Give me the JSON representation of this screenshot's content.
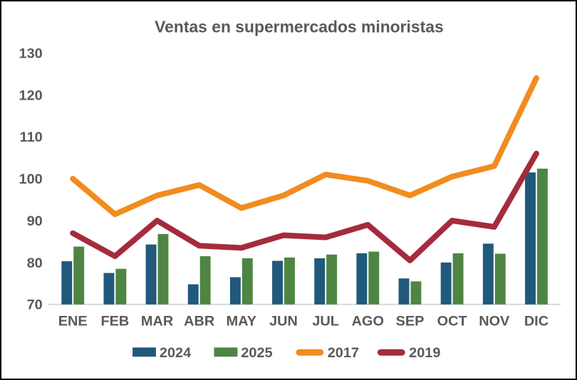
{
  "frame": {
    "background": "#FFFFFF",
    "border_color": "#000000"
  },
  "chart_data": {
    "type": "bar",
    "title": "Ventas en supermercados minoristas",
    "categories": [
      "ENE",
      "FEB",
      "MAR",
      "ABR",
      "MAY",
      "JUN",
      "JUL",
      "AGO",
      "SEP",
      "OCT",
      "NOV",
      "DIC"
    ],
    "series": [
      {
        "name": "2024",
        "render": "bar",
        "color": "#20597C",
        "values": [
          80.3,
          77.5,
          84.3,
          74.8,
          76.5,
          80.4,
          81.0,
          82.2,
          76.2,
          80.0,
          84.5,
          101.5
        ]
      },
      {
        "name": "2025",
        "render": "bar",
        "color": "#4E8542",
        "values": [
          83.8,
          78.5,
          86.8,
          81.5,
          81.0,
          81.2,
          81.9,
          82.6,
          75.5,
          82.2,
          82.1,
          102.4
        ]
      },
      {
        "name": "2017",
        "render": "line",
        "color": "#F18C1F",
        "values": [
          100.0,
          91.5,
          96.0,
          98.5,
          93.0,
          96.0,
          101.0,
          99.5,
          96.0,
          100.5,
          103.0,
          124.0
        ]
      },
      {
        "name": "2019",
        "render": "line",
        "color": "#A42C3C",
        "values": [
          87.0,
          81.5,
          90.0,
          84.0,
          83.5,
          86.5,
          86.0,
          89.0,
          80.5,
          90.0,
          88.5,
          106.0
        ]
      }
    ],
    "xlabel": "",
    "ylabel": "",
    "ylim": [
      70,
      130
    ],
    "yticks": [
      70,
      80,
      90,
      100,
      110,
      120,
      130
    ],
    "grid": "off",
    "legend_position": "bottom",
    "text_color": "#595959",
    "axis_line_color": "#D9D9D9"
  }
}
